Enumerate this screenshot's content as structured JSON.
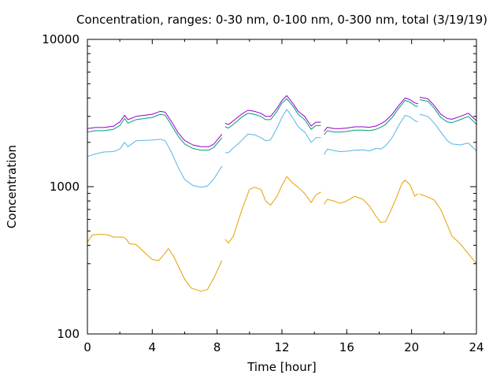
{
  "chart_data": {
    "type": "line",
    "title": "Concentration, ranges: 0-30 nm, 0-100 nm, 0-300 nm, total (3/19/19)",
    "xlabel": "Time [hour]",
    "ylabel": "Concentration",
    "xlim": [
      0,
      24
    ],
    "ylim": [
      100,
      10000
    ],
    "yscale": "log",
    "grid": false,
    "legend": "none",
    "x_ticks": [
      "0",
      "4",
      "8",
      "12",
      "16",
      "20",
      "24"
    ],
    "y_ticks": [
      "100",
      "1000",
      "10000"
    ],
    "series": [
      {
        "color": "#e69f00",
        "segments": [
          [
            [
              0,
              420
            ],
            [
              0.3,
              470
            ],
            [
              0.8,
              475
            ],
            [
              1.3,
              470
            ],
            [
              1.6,
              455
            ],
            [
              2.2,
              455
            ],
            [
              2.4,
              440
            ],
            [
              2.6,
              410
            ],
            [
              3.0,
              405
            ],
            [
              3.5,
              360
            ],
            [
              4.0,
              320
            ],
            [
              4.4,
              315
            ],
            [
              4.8,
              355
            ],
            [
              5.0,
              380
            ],
            [
              5.3,
              340
            ],
            [
              5.6,
              290
            ],
            [
              6.0,
              235
            ],
            [
              6.4,
              205
            ],
            [
              7.0,
              195
            ],
            [
              7.4,
              200
            ],
            [
              7.8,
              240
            ],
            [
              8.3,
              315
            ]
          ],
          [
            [
              8.5,
              440
            ],
            [
              8.7,
              415
            ],
            [
              9.0,
              460
            ],
            [
              9.5,
              680
            ],
            [
              10.0,
              960
            ],
            [
              10.3,
              990
            ],
            [
              10.7,
              960
            ],
            [
              11.0,
              800
            ],
            [
              11.3,
              750
            ],
            [
              11.7,
              860
            ],
            [
              12.0,
              1020
            ],
            [
              12.3,
              1170
            ],
            [
              12.7,
              1050
            ],
            [
              13.0,
              990
            ],
            [
              13.4,
              900
            ],
            [
              13.8,
              780
            ],
            [
              14.1,
              880
            ],
            [
              14.4,
              920
            ]
          ],
          [
            [
              14.6,
              760
            ],
            [
              14.8,
              820
            ],
            [
              15.2,
              800
            ],
            [
              15.6,
              770
            ],
            [
              16.0,
              800
            ],
            [
              16.5,
              860
            ],
            [
              17.0,
              820
            ],
            [
              17.4,
              740
            ],
            [
              17.8,
              630
            ],
            [
              18.1,
              570
            ],
            [
              18.4,
              580
            ],
            [
              18.7,
              680
            ],
            [
              19.1,
              860
            ],
            [
              19.4,
              1050
            ],
            [
              19.6,
              1110
            ],
            [
              19.9,
              1030
            ],
            [
              20.2,
              860
            ],
            [
              20.4,
              900
            ]
          ],
          [
            [
              20.5,
              890
            ],
            [
              21.0,
              850
            ],
            [
              21.4,
              810
            ],
            [
              21.8,
              700
            ],
            [
              22.2,
              550
            ],
            [
              22.5,
              460
            ],
            [
              23.0,
              410
            ],
            [
              23.5,
              350
            ],
            [
              24,
              300
            ]
          ]
        ]
      },
      {
        "color": "#56b4e9",
        "segments": [
          [
            [
              0,
              1600
            ],
            [
              0.5,
              1670
            ],
            [
              1.0,
              1720
            ],
            [
              1.6,
              1730
            ],
            [
              2.0,
              1800
            ],
            [
              2.3,
              2000
            ],
            [
              2.5,
              1870
            ],
            [
              3.0,
              2050
            ],
            [
              3.5,
              2060
            ],
            [
              4.0,
              2070
            ],
            [
              4.5,
              2100
            ],
            [
              4.8,
              2050
            ],
            [
              5.2,
              1700
            ],
            [
              5.6,
              1350
            ],
            [
              6.0,
              1120
            ],
            [
              6.5,
              1020
            ],
            [
              7.0,
              990
            ],
            [
              7.4,
              1010
            ],
            [
              7.8,
              1130
            ],
            [
              8.3,
              1380
            ]
          ],
          [
            [
              8.5,
              1700
            ],
            [
              8.7,
              1700
            ],
            [
              9.0,
              1830
            ],
            [
              9.5,
              2050
            ],
            [
              9.9,
              2280
            ],
            [
              10.3,
              2250
            ],
            [
              10.7,
              2150
            ],
            [
              11.0,
              2050
            ],
            [
              11.3,
              2080
            ],
            [
              11.7,
              2500
            ],
            [
              12.0,
              2950
            ],
            [
              12.3,
              3350
            ],
            [
              12.7,
              2900
            ],
            [
              13.0,
              2550
            ],
            [
              13.4,
              2350
            ],
            [
              13.8,
              2000
            ],
            [
              14.1,
              2150
            ],
            [
              14.4,
              2150
            ]
          ],
          [
            [
              14.6,
              1650
            ],
            [
              14.8,
              1800
            ],
            [
              15.2,
              1760
            ],
            [
              15.6,
              1730
            ],
            [
              16.0,
              1740
            ],
            [
              16.5,
              1770
            ],
            [
              17.0,
              1780
            ],
            [
              17.4,
              1750
            ],
            [
              17.8,
              1820
            ],
            [
              18.1,
              1800
            ],
            [
              18.4,
              1900
            ],
            [
              18.8,
              2150
            ],
            [
              19.2,
              2600
            ],
            [
              19.6,
              3050
            ],
            [
              19.9,
              2980
            ],
            [
              20.2,
              2800
            ],
            [
              20.4,
              2750
            ]
          ],
          [
            [
              20.5,
              3100
            ],
            [
              21.0,
              3000
            ],
            [
              21.4,
              2700
            ],
            [
              21.8,
              2350
            ],
            [
              22.2,
              2050
            ],
            [
              22.5,
              1950
            ],
            [
              23.0,
              1920
            ],
            [
              23.5,
              1980
            ],
            [
              24,
              1750
            ]
          ]
        ]
      },
      {
        "color": "#009e73",
        "segments": [
          [
            [
              0,
              2350
            ],
            [
              0.5,
              2400
            ],
            [
              1.0,
              2400
            ],
            [
              1.6,
              2450
            ],
            [
              2.0,
              2600
            ],
            [
              2.3,
              2900
            ],
            [
              2.5,
              2700
            ],
            [
              3.0,
              2850
            ],
            [
              3.5,
              2900
            ],
            [
              4.0,
              2950
            ],
            [
              4.5,
              3100
            ],
            [
              4.8,
              3050
            ],
            [
              5.2,
              2600
            ],
            [
              5.6,
              2200
            ],
            [
              6.0,
              1950
            ],
            [
              6.5,
              1820
            ],
            [
              7.0,
              1770
            ],
            [
              7.5,
              1770
            ],
            [
              7.8,
              1850
            ],
            [
              8.3,
              2150
            ]
          ],
          [
            [
              8.5,
              2550
            ],
            [
              8.7,
              2500
            ],
            [
              9.0,
              2650
            ],
            [
              9.5,
              2950
            ],
            [
              9.9,
              3150
            ],
            [
              10.3,
              3100
            ],
            [
              10.7,
              3000
            ],
            [
              11.0,
              2850
            ],
            [
              11.3,
              2850
            ],
            [
              11.7,
              3250
            ],
            [
              12.0,
              3700
            ],
            [
              12.3,
              3950
            ],
            [
              12.7,
              3500
            ],
            [
              13.0,
              3100
            ],
            [
              13.4,
              2850
            ],
            [
              13.8,
              2450
            ],
            [
              14.1,
              2600
            ],
            [
              14.4,
              2600
            ]
          ],
          [
            [
              14.6,
              2250
            ],
            [
              14.8,
              2400
            ],
            [
              15.2,
              2350
            ],
            [
              15.6,
              2350
            ],
            [
              16.0,
              2370
            ],
            [
              16.5,
              2420
            ],
            [
              17.0,
              2420
            ],
            [
              17.4,
              2400
            ],
            [
              17.8,
              2450
            ],
            [
              18.1,
              2530
            ],
            [
              18.4,
              2650
            ],
            [
              18.8,
              2950
            ],
            [
              19.2,
              3400
            ],
            [
              19.6,
              3850
            ],
            [
              19.9,
              3750
            ],
            [
              20.2,
              3550
            ],
            [
              20.4,
              3500
            ]
          ],
          [
            [
              20.5,
              3900
            ],
            [
              21.0,
              3800
            ],
            [
              21.4,
              3400
            ],
            [
              21.8,
              2950
            ],
            [
              22.2,
              2750
            ],
            [
              22.5,
              2720
            ],
            [
              23.0,
              2850
            ],
            [
              23.5,
              3000
            ],
            [
              24,
              2650
            ]
          ]
        ]
      },
      {
        "color": "#9400d3",
        "segments": [
          [
            [
              0,
              2480
            ],
            [
              0.5,
              2520
            ],
            [
              1.0,
              2520
            ],
            [
              1.6,
              2570
            ],
            [
              2.0,
              2750
            ],
            [
              2.3,
              3050
            ],
            [
              2.5,
              2850
            ],
            [
              3.0,
              3000
            ],
            [
              3.5,
              3050
            ],
            [
              4.0,
              3100
            ],
            [
              4.5,
              3250
            ],
            [
              4.8,
              3200
            ],
            [
              5.2,
              2750
            ],
            [
              5.6,
              2320
            ],
            [
              6.0,
              2060
            ],
            [
              6.5,
              1920
            ],
            [
              7.0,
              1870
            ],
            [
              7.5,
              1870
            ],
            [
              7.8,
              1950
            ],
            [
              8.3,
              2270
            ]
          ],
          [
            [
              8.5,
              2700
            ],
            [
              8.7,
              2640
            ],
            [
              9.0,
              2800
            ],
            [
              9.5,
              3100
            ],
            [
              9.9,
              3300
            ],
            [
              10.3,
              3250
            ],
            [
              10.7,
              3150
            ],
            [
              11.0,
              3000
            ],
            [
              11.3,
              3000
            ],
            [
              11.7,
              3400
            ],
            [
              12.0,
              3850
            ],
            [
              12.3,
              4150
            ],
            [
              12.7,
              3650
            ],
            [
              13.0,
              3250
            ],
            [
              13.4,
              3000
            ],
            [
              13.8,
              2580
            ],
            [
              14.1,
              2740
            ],
            [
              14.4,
              2740
            ]
          ],
          [
            [
              14.6,
              2380
            ],
            [
              14.8,
              2530
            ],
            [
              15.2,
              2480
            ],
            [
              15.6,
              2480
            ],
            [
              16.0,
              2500
            ],
            [
              16.5,
              2550
            ],
            [
              17.0,
              2550
            ],
            [
              17.4,
              2530
            ],
            [
              17.8,
              2580
            ],
            [
              18.1,
              2670
            ],
            [
              18.4,
              2800
            ],
            [
              18.8,
              3100
            ],
            [
              19.2,
              3550
            ],
            [
              19.6,
              4000
            ],
            [
              19.9,
              3900
            ],
            [
              20.2,
              3700
            ],
            [
              20.4,
              3650
            ]
          ],
          [
            [
              20.5,
              4050
            ],
            [
              21.0,
              3950
            ],
            [
              21.4,
              3550
            ],
            [
              21.8,
              3100
            ],
            [
              22.2,
              2900
            ],
            [
              22.5,
              2870
            ],
            [
              23.0,
              3000
            ],
            [
              23.5,
              3150
            ],
            [
              24,
              2800
            ]
          ]
        ]
      }
    ]
  }
}
